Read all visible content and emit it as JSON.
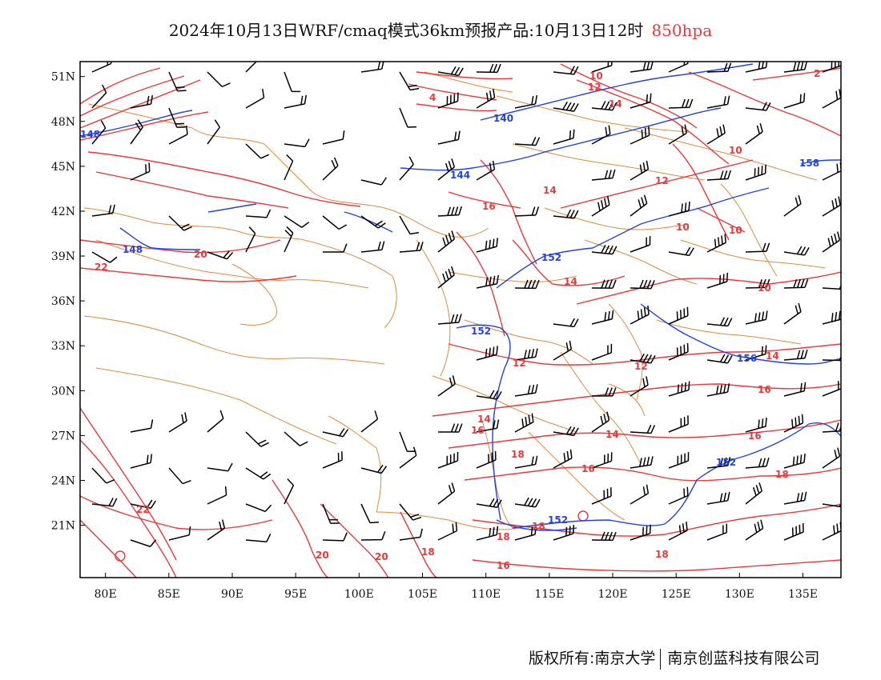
{
  "title": {
    "main": "2024年10月13日WRF/cmaq模式36km预报产品:10月13日12时",
    "level": "850hpa"
  },
  "map": {
    "lon_range": [
      78,
      138
    ],
    "lat_range": [
      17.5,
      52
    ],
    "lon_ticks": [
      "80E",
      "85E",
      "90E",
      "95E",
      "100E",
      "105E",
      "110E",
      "115E",
      "120E",
      "125E",
      "130E",
      "135E"
    ],
    "lat_ticks": [
      "51N",
      "48N",
      "45N",
      "42N",
      "39N",
      "36N",
      "33N",
      "30N",
      "27N",
      "24N",
      "21N"
    ],
    "colors": {
      "temperature": "#e83a3a",
      "geopotential": "#2244dd",
      "boundary": "#e08a3a",
      "wind": "#000000"
    }
  },
  "temperature_labels": [
    "10",
    "12",
    "14",
    "4",
    "14",
    "16",
    "12",
    "10",
    "10",
    "10",
    "14",
    "12",
    "12",
    "10",
    "14",
    "16",
    "18",
    "18",
    "16",
    "14",
    "16",
    "18",
    "18",
    "16",
    "18",
    "20",
    "20",
    "22",
    "22",
    "18",
    "16",
    "14",
    "12",
    "2"
  ],
  "geopotential_labels": [
    "140",
    "144",
    "148",
    "148",
    "152",
    "152",
    "158",
    "152",
    "156",
    "152"
  ],
  "copyright": {
    "left": "版权所有:南京大学",
    "right": "南京创蓝科技有限公司"
  }
}
